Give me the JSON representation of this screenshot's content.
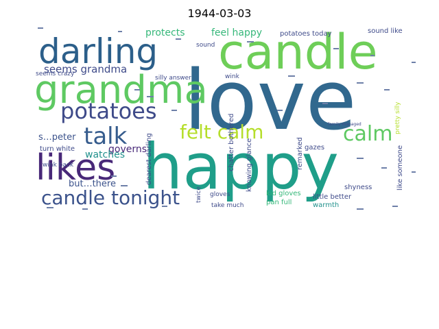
{
  "title": "1944-03-03",
  "palette": {
    "darkblue": "#2c5f8a",
    "blue": "#365c8d",
    "navy": "#3b528b",
    "purple": "#482878",
    "darkpurple": "#46327e",
    "teal": "#21918c",
    "teal2": "#1f9e89",
    "green": "#35b779",
    "lime": "#6ece58",
    "yellowgreen": "#b5de2b",
    "yellow": "#d8e219",
    "slate": "#31688e",
    "gray": "#3e4a89"
  },
  "words": {
    "love": "love",
    "happy": "happy",
    "candle": "candle",
    "grandma": "grandma",
    "darling": "darling",
    "likes": "likes",
    "potatoes": "potatoes",
    "talk": "talk",
    "candle_tonight": "candle tonight",
    "felt_calm": "felt calm",
    "calm": "calm",
    "seems_grandma": "seems grandma",
    "protects": "protects",
    "feel_happy": "feel happy",
    "potatoes_today": "potatoes today",
    "sound_like": "sound like",
    "governs": "governs",
    "watches": "watches",
    "speter": "s…peter",
    "butthere": "but…there",
    "seems_crazy": "seems crazy",
    "silly_answer": "silly answer",
    "turn_white": "turn white",
    "wink_back": "wink back",
    "wink": "wink",
    "chatter_bothered": "chatter bothered",
    "dearest_darling": "dearest darling",
    "knowing_glance": "knowing glance",
    "remarked": "remarked",
    "gazes": "gazes",
    "kid_gloves": "kid gloves",
    "pan_full": "pan full",
    "little_better": "little better",
    "like_someone": "like someone",
    "shyness": "shyness",
    "warmth": "warmth",
    "take_much": "take much",
    "gloves": "gloves",
    "twice": "twice",
    "sound": "sound",
    "pretty_silly": "pretty silly",
    "family_managed": "family managed"
  }
}
